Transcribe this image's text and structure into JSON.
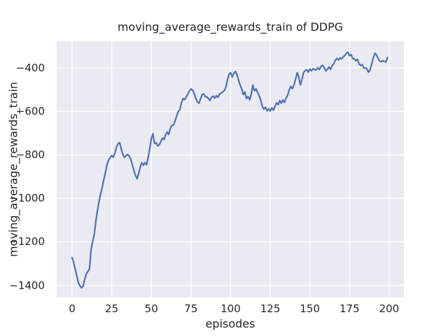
{
  "chart": {
    "title": "moving_average_rewards_train of DDPG",
    "xlabel": "episodes",
    "ylabel": "moving_average_rewards_train"
  },
  "chart_data": {
    "type": "line",
    "title": "moving_average_rewards_train of DDPG",
    "xlabel": "episodes",
    "ylabel": "moving_average_rewards_train",
    "grid": true,
    "legend_position": "none",
    "style": "seaborn-darkgrid",
    "colors": {
      "line": "#4c72b0",
      "plot_background": "#eaeaf2",
      "grid": "#ffffff",
      "text": "#262626",
      "figure_background": "#ffffff"
    },
    "x_ticks": [
      0,
      25,
      50,
      75,
      100,
      125,
      150,
      175,
      200
    ],
    "x_tick_labels": [
      "0",
      "25",
      "50",
      "75",
      "100",
      "125",
      "150",
      "175",
      "200"
    ],
    "y_ticks": [
      -400,
      -600,
      -800,
      -1000,
      -1200,
      -1400
    ],
    "y_tick_labels": [
      "−400",
      "−600",
      "−800",
      "−1000",
      "−1200",
      "−1400"
    ],
    "xlim": [
      -9.7,
      209.3
    ],
    "ylim": [
      -1456,
      -278
    ],
    "series": [
      {
        "name": "moving_average_rewards_train",
        "x_start": 0,
        "x_step": 1,
        "values": [
          -1272,
          -1295,
          -1327,
          -1357,
          -1388,
          -1403,
          -1412,
          -1403,
          -1372,
          -1347,
          -1336,
          -1323,
          -1235,
          -1197,
          -1165,
          -1105,
          -1056,
          -1015,
          -980,
          -950,
          -915,
          -882,
          -846,
          -824,
          -814,
          -803,
          -811,
          -791,
          -765,
          -749,
          -744,
          -772,
          -798,
          -812,
          -805,
          -798,
          -806,
          -820,
          -845,
          -872,
          -895,
          -910,
          -886,
          -856,
          -836,
          -848,
          -836,
          -846,
          -812,
          -772,
          -725,
          -703,
          -748,
          -744,
          -759,
          -754,
          -738,
          -723,
          -729,
          -708,
          -695,
          -706,
          -678,
          -664,
          -662,
          -644,
          -621,
          -601,
          -592,
          -560,
          -541,
          -546,
          -534,
          -521,
          -507,
          -497,
          -502,
          -517,
          -539,
          -556,
          -563,
          -544,
          -524,
          -519,
          -533,
          -533,
          -541,
          -550,
          -536,
          -530,
          -539,
          -528,
          -536,
          -521,
          -517,
          -511,
          -505,
          -489,
          -455,
          -429,
          -422,
          -442,
          -426,
          -417,
          -430,
          -457,
          -479,
          -497,
          -523,
          -511,
          -541,
          -532,
          -547,
          -522,
          -479,
          -506,
          -497,
          -512,
          -529,
          -549,
          -577,
          -590,
          -581,
          -598,
          -588,
          -599,
          -584,
          -595,
          -577,
          -560,
          -570,
          -550,
          -563,
          -548,
          -559,
          -539,
          -526,
          -500,
          -485,
          -496,
          -478,
          -452,
          -422,
          -442,
          -479,
          -454,
          -422,
          -413,
          -409,
          -420,
          -405,
          -414,
          -404,
          -408,
          -410,
          -399,
          -408,
          -394,
          -388,
          -398,
          -414,
          -407,
          -396,
          -407,
          -390,
          -382,
          -366,
          -356,
          -364,
          -354,
          -358,
          -350,
          -344,
          -333,
          -329,
          -344,
          -339,
          -357,
          -358,
          -367,
          -361,
          -382,
          -389,
          -385,
          -401,
          -400,
          -405,
          -420,
          -409,
          -382,
          -355,
          -333,
          -341,
          -356,
          -369,
          -372,
          -367,
          -371,
          -373,
          -352
        ]
      }
    ]
  }
}
